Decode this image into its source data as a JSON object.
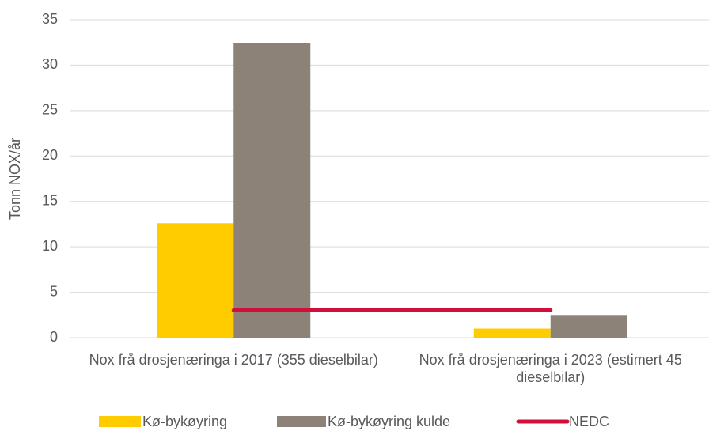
{
  "chart_data": {
    "type": "bar",
    "categories": [
      "Nox frå drosjenæringa i 2017 (355 dieselbilar)",
      "Nox frå drosjenæringa i 2023 (estimert 45 dieselbilar)"
    ],
    "y_label": "Tonn NOX/år",
    "series": [
      {
        "name": "Kø-bykøyring",
        "color": "#ffcc00",
        "values": [
          12.6,
          1.0
        ]
      },
      {
        "name": "Kø-bykøyring kulde",
        "color": "#8c8278",
        "values": [
          32.4,
          2.5
        ]
      },
      {
        "name": "NEDC",
        "color": "#d0103a",
        "values": [
          3.0,
          3.0
        ],
        "kind": "line"
      }
    ],
    "ylim": [
      0,
      35
    ],
    "yticks": [
      0,
      5,
      10,
      15,
      20,
      25,
      30,
      35
    ],
    "grid": true,
    "legend": "bottom"
  }
}
